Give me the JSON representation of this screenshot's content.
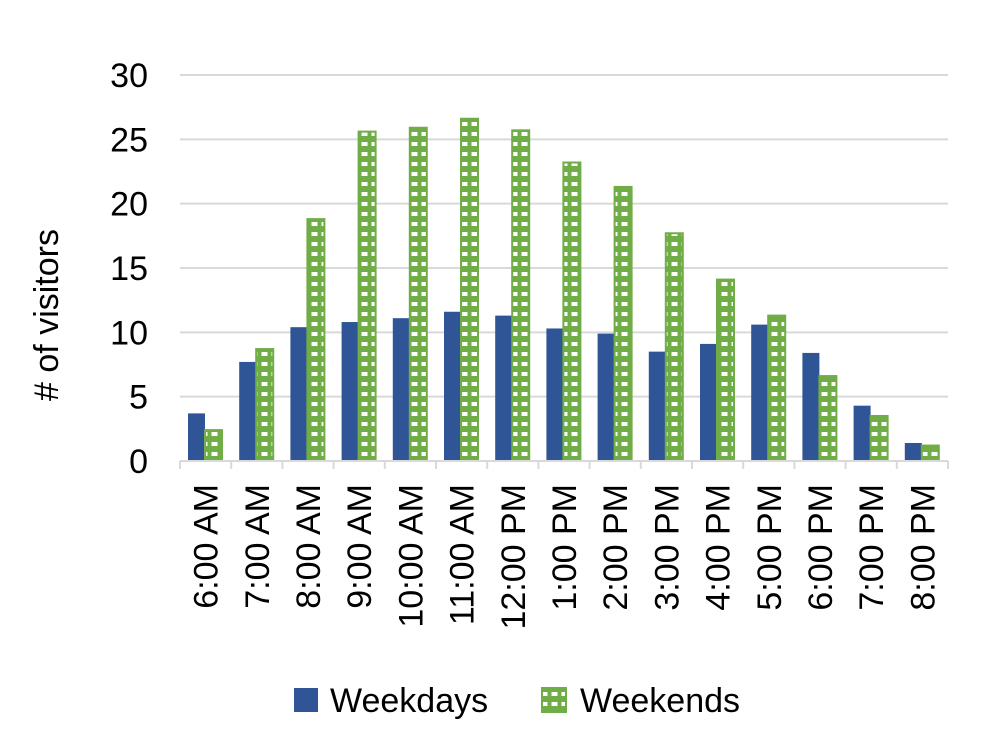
{
  "chart_data": {
    "type": "bar",
    "title": "",
    "xlabel": "",
    "ylabel": "# of visitors",
    "ylim": [
      0,
      30
    ],
    "yticks": [
      "0",
      "5",
      "10",
      "15",
      "20",
      "25",
      "30"
    ],
    "grid": "horizontal",
    "legend_position": "bottom",
    "categories": [
      "6:00 AM",
      "7:00 AM",
      "8:00 AM",
      "9:00 AM",
      "10:00 AM",
      "11:00 AM",
      "12:00 PM",
      "1:00 PM",
      "2:00 PM",
      "3:00 PM",
      "4:00 PM",
      "5:00 PM",
      "6:00 PM",
      "7:00 PM",
      "8:00 PM"
    ],
    "series": [
      {
        "name": "Weekdays",
        "color": "#2f5597",
        "pattern": "solid",
        "values": [
          3.7,
          7.7,
          10.4,
          10.8,
          11.1,
          11.6,
          11.3,
          10.3,
          9.9,
          8.5,
          9.1,
          10.6,
          8.4,
          4.3,
          1.4
        ]
      },
      {
        "name": "Weekends",
        "color": "#70ad47",
        "pattern": "dotted-grid",
        "values": [
          2.4,
          8.7,
          18.8,
          25.6,
          25.9,
          26.6,
          25.7,
          23.2,
          21.3,
          17.7,
          14.1,
          11.3,
          6.6,
          3.5,
          1.2
        ]
      }
    ]
  }
}
